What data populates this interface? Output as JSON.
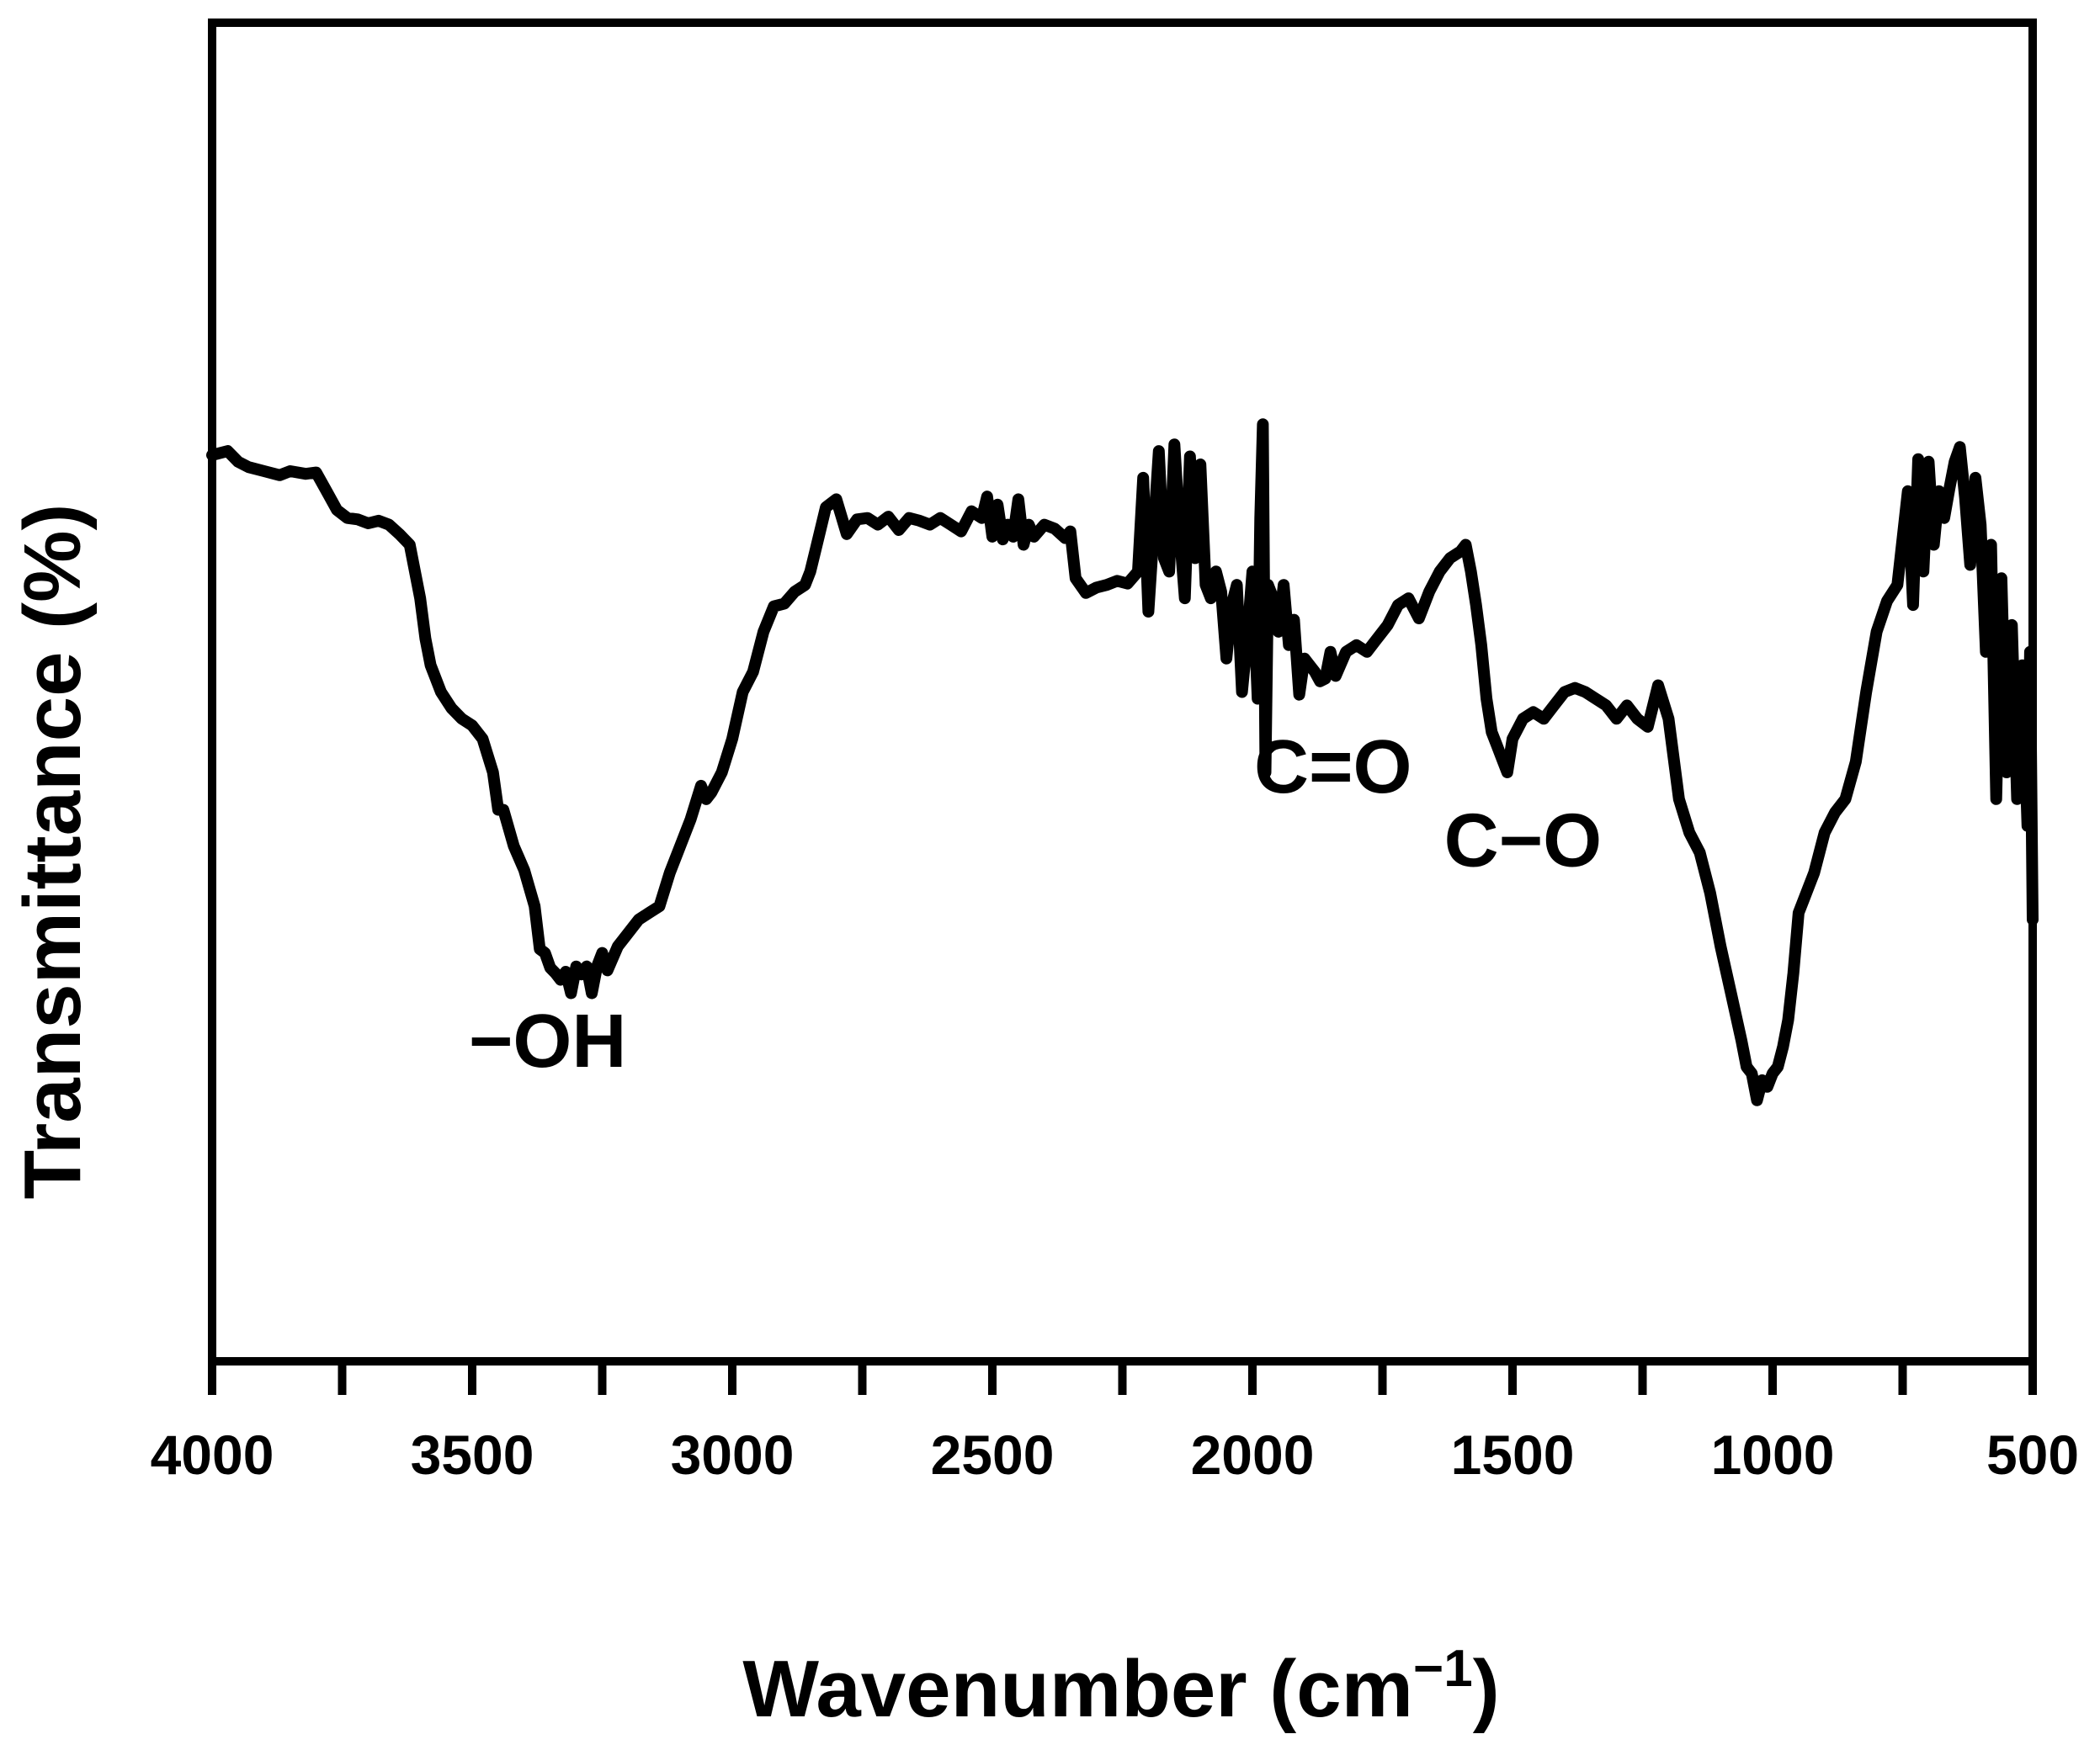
{
  "chart_data": {
    "type": "line",
    "title": "",
    "xlabel": "Wavenumber (cm",
    "xlabel_sup": "−1",
    "xlabel_close": ")",
    "ylabel": "Transmittance (%)",
    "xlim": [
      4000,
      500
    ],
    "ylim": [
      0,
      100
    ],
    "x_reversed": true,
    "y_tick_labels_shown": false,
    "grid": false,
    "x_ticks": [
      4000,
      3500,
      3000,
      2500,
      2000,
      1500,
      1000,
      500
    ],
    "x_tick_labels": [
      "4000",
      "3500",
      "3000",
      "2500",
      "2000",
      "1500",
      "1000",
      "500"
    ],
    "x_minor_ticks": [
      3750,
      3250,
      2750,
      2250,
      1750,
      1250,
      750
    ],
    "series": [
      {
        "color": "#000000",
        "x": [
          4000,
          3970,
          3950,
          3930,
          3900,
          3870,
          3850,
          3820,
          3800,
          3780,
          3760,
          3740,
          3720,
          3700,
          3680,
          3660,
          3640,
          3620,
          3610,
          3600,
          3590,
          3580,
          3560,
          3540,
          3520,
          3500,
          3480,
          3460,
          3450,
          3440,
          3420,
          3400,
          3380,
          3370,
          3360,
          3350,
          3340,
          3330,
          3320,
          3310,
          3300,
          3290,
          3280,
          3270,
          3260,
          3250,
          3240,
          3220,
          3200,
          3180,
          3160,
          3140,
          3120,
          3100,
          3080,
          3060,
          3050,
          3040,
          3020,
          3000,
          2980,
          2960,
          2940,
          2920,
          2900,
          2880,
          2860,
          2850,
          2840,
          2820,
          2800,
          2780,
          2760,
          2740,
          2720,
          2700,
          2680,
          2660,
          2640,
          2620,
          2600,
          2580,
          2560,
          2540,
          2520,
          2510,
          2500,
          2490,
          2480,
          2470,
          2460,
          2450,
          2440,
          2430,
          2420,
          2400,
          2380,
          2360,
          2350,
          2340,
          2320,
          2300,
          2280,
          2260,
          2240,
          2220,
          2210,
          2200,
          2190,
          2180,
          2170,
          2160,
          2150,
          2140,
          2130,
          2120,
          2110,
          2100,
          2090,
          2080,
          2070,
          2060,
          2050,
          2040,
          2030,
          2020,
          2010,
          2000,
          1990,
          1985,
          1980,
          1975,
          1970,
          1960,
          1950,
          1940,
          1930,
          1920,
          1910,
          1900,
          1890,
          1880,
          1870,
          1860,
          1850,
          1840,
          1820,
          1800,
          1780,
          1760,
          1740,
          1720,
          1700,
          1680,
          1660,
          1640,
          1620,
          1600,
          1590,
          1580,
          1570,
          1560,
          1550,
          1540,
          1530,
          1520,
          1510,
          1500,
          1480,
          1460,
          1440,
          1420,
          1400,
          1380,
          1360,
          1340,
          1320,
          1300,
          1280,
          1260,
          1240,
          1220,
          1200,
          1190,
          1180,
          1160,
          1140,
          1120,
          1100,
          1080,
          1060,
          1050,
          1040,
          1030,
          1020,
          1010,
          1000,
          990,
          980,
          970,
          960,
          950,
          940,
          920,
          900,
          880,
          860,
          840,
          820,
          800,
          780,
          760,
          740,
          730,
          720,
          710,
          700,
          690,
          680,
          670,
          660,
          650,
          640,
          630,
          620,
          610,
          600,
          590,
          580,
          570,
          560,
          550,
          540,
          530,
          520,
          510,
          505,
          500
        ],
        "y": [
          67.7,
          68.0,
          67.2,
          66.8,
          66.5,
          66.2,
          66.5,
          66.3,
          66.4,
          65.0,
          63.6,
          63.0,
          62.9,
          62.6,
          62.8,
          62.5,
          61.8,
          61.0,
          59.0,
          57.0,
          54.0,
          52.0,
          50.0,
          48.8,
          48.0,
          47.5,
          46.5,
          44.0,
          41.2,
          41.2,
          38.5,
          36.7,
          34.0,
          30.8,
          30.5,
          29.4,
          29.0,
          28.5,
          29.1,
          27.5,
          29.5,
          28.9,
          29.5,
          27.5,
          29.5,
          30.5,
          29.2,
          31.0,
          32.0,
          33.0,
          33.5,
          34.0,
          36.5,
          38.5,
          40.5,
          43.0,
          42.0,
          42.5,
          44.0,
          46.5,
          50.0,
          51.5,
          54.5,
          56.4,
          56.6,
          57.5,
          58.0,
          59.0,
          60.6,
          63.8,
          64.4,
          61.8,
          62.9,
          63.0,
          62.5,
          63.1,
          62.1,
          63.0,
          62.8,
          62.5,
          63.0,
          62.5,
          62.0,
          63.5,
          63.0,
          64.6,
          61.6,
          64.0,
          61.4,
          62.5,
          61.6,
          64.4,
          61.0,
          62.5,
          61.6,
          62.5,
          62.2,
          61.5,
          62.0,
          58.5,
          57.4,
          57.8,
          58.0,
          58.3,
          58.1,
          59.0,
          66.0,
          56.0,
          62.0,
          68.0,
          60.0,
          59.0,
          68.5,
          62.0,
          57.0,
          67.6,
          60.0,
          67.0,
          58.0,
          57.0,
          59.0,
          57.5,
          52.5,
          56.5,
          58.0,
          50.0,
          54.0,
          59.0,
          49.5,
          63.0,
          70.0,
          44.0,
          58.0,
          57.0,
          54.5,
          58.0,
          53.5,
          55.4,
          49.8,
          52.5,
          52.0,
          51.5,
          50.8,
          51.0,
          53.0,
          51.2,
          53.0,
          53.5,
          53.0,
          54.0,
          55.0,
          56.5,
          57.0,
          55.5,
          57.5,
          59.0,
          60.0,
          60.5,
          61.0,
          59.0,
          56.5,
          53.5,
          49.5,
          47.0,
          46.0,
          45.0,
          44.0,
          46.5,
          48.0,
          48.5,
          48.0,
          49.0,
          50.0,
          50.3,
          50.0,
          49.5,
          49.0,
          48.0,
          49.0,
          48.0,
          47.4,
          50.5,
          48.0,
          45.0,
          42.0,
          39.5,
          38.0,
          35.0,
          31.0,
          27.5,
          24.0,
          22.0,
          21.5,
          19.5,
          21.0,
          20.5,
          21.5,
          22.0,
          23.5,
          25.5,
          29.0,
          33.5,
          34.5,
          36.5,
          39.5,
          41.0,
          42.0,
          44.8,
          50.0,
          54.5,
          56.8,
          58.0,
          65.0,
          56.5,
          67.4,
          59.0,
          67.2,
          61.0,
          65.0,
          63.0,
          65.2,
          67.2,
          68.3,
          64.5,
          59.5,
          66.0,
          62.5,
          53.0,
          61.0,
          42.0,
          58.5,
          44.0,
          55.0,
          42.0,
          52.0,
          40.0,
          53.0,
          33.0
        ]
      }
    ],
    "annotations": [
      {
        "text": "−OH",
        "x": 3355,
        "y": 22
      },
      {
        "text": "C=O",
        "x": 1845,
        "y": 42.5
      },
      {
        "text": "C−O",
        "x": 1480,
        "y": 37
      }
    ]
  }
}
